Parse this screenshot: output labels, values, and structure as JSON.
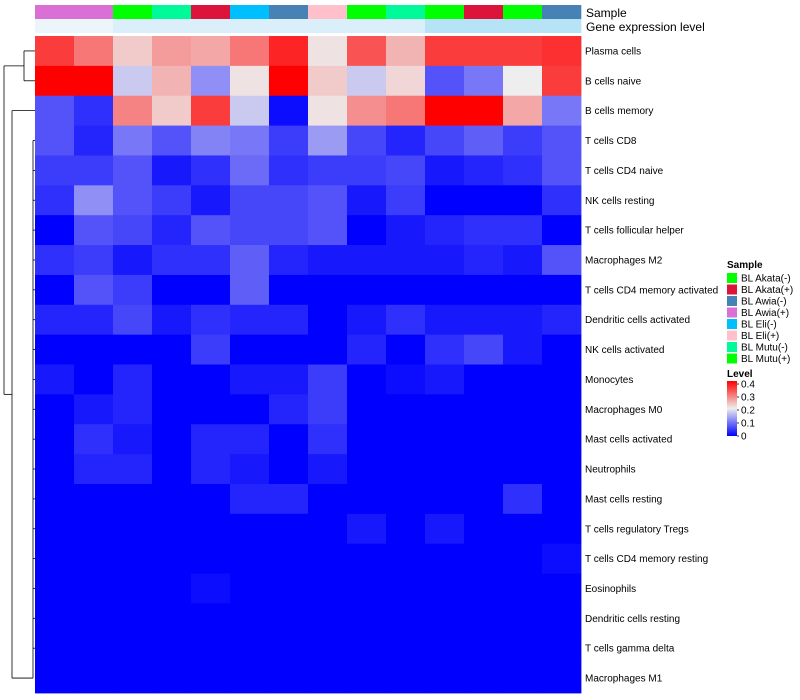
{
  "chart_data": {
    "type": "heatmap",
    "annotation_tracks": [
      "Sample",
      "Gene expression level"
    ],
    "rows": [
      "Plasma cells",
      "B cells naive",
      "B cells memory",
      "T cells CD8",
      "T cells CD4 naive",
      "NK cells resting",
      "T cells follicular helper",
      "Macrophages M2",
      "T cells CD4 memory activated",
      "Dendritic cells activated",
      "NK cells activated",
      "Monocytes",
      "Macrophages M0",
      "Mast cells activated",
      "Neutrophils",
      "Mast cells resting",
      "T cells regulatory  Tregs",
      "T cells CD4 memory resting",
      "Eosinophils",
      "Dendritic cells resting",
      "T cells gamma delta",
      "Macrophages M1"
    ],
    "column_samples": [
      "BL Awia(+)",
      "BL Awia(+)",
      "BL Akata(-)",
      "BL Mutu(-)",
      "BL Akata(+)",
      "BL Eli(-)",
      "BL Awia(-)",
      "BL Eli(+)",
      "BL Akata(-)",
      "BL Mutu(-)",
      "BL Akata(-)",
      "BL Akata(+)",
      "BL Akata(-)",
      "BL Awia(-)"
    ],
    "column_expression": [
      0.05,
      0.05,
      0.2,
      0.2,
      0.2,
      0.2,
      0.2,
      0.2,
      0.2,
      0.2,
      0.5,
      0.5,
      0.5,
      0.5
    ],
    "values": [
      [
        0.35,
        0.3,
        0.23,
        0.27,
        0.26,
        0.3,
        0.37,
        0.21,
        0.33,
        0.25,
        0.35,
        0.35,
        0.35,
        0.36
      ],
      [
        0.4,
        0.4,
        0.17,
        0.25,
        0.12,
        0.21,
        0.4,
        0.23,
        0.17,
        0.22,
        0.07,
        0.1,
        0.2,
        0.35
      ],
      [
        0.07,
        0.04,
        0.29,
        0.23,
        0.35,
        0.17,
        0.01,
        0.21,
        0.28,
        0.3,
        0.4,
        0.4,
        0.26,
        0.1
      ],
      [
        0.07,
        0.03,
        0.1,
        0.07,
        0.11,
        0.1,
        0.05,
        0.13,
        0.06,
        0.03,
        0.06,
        0.08,
        0.05,
        0.07
      ],
      [
        0.05,
        0.05,
        0.07,
        0.02,
        0.04,
        0.09,
        0.04,
        0.05,
        0.05,
        0.06,
        0.02,
        0.03,
        0.04,
        0.07
      ],
      [
        0.04,
        0.12,
        0.07,
        0.05,
        0.02,
        0.06,
        0.06,
        0.07,
        0.02,
        0.05,
        0.0,
        0.0,
        0.0,
        0.04
      ],
      [
        0.0,
        0.07,
        0.06,
        0.03,
        0.07,
        0.06,
        0.06,
        0.07,
        0.0,
        0.02,
        0.03,
        0.04,
        0.04,
        0.0
      ],
      [
        0.04,
        0.05,
        0.02,
        0.04,
        0.04,
        0.08,
        0.03,
        0.02,
        0.02,
        0.02,
        0.02,
        0.03,
        0.02,
        0.07
      ],
      [
        0.0,
        0.07,
        0.05,
        0.0,
        0.0,
        0.08,
        0.0,
        0.0,
        0.0,
        0.0,
        0.0,
        0.0,
        0.0,
        0.0
      ],
      [
        0.03,
        0.03,
        0.06,
        0.02,
        0.04,
        0.03,
        0.03,
        0.0,
        0.02,
        0.04,
        0.02,
        0.02,
        0.02,
        0.03
      ],
      [
        0.0,
        0.0,
        0.0,
        0.0,
        0.05,
        0.0,
        0.0,
        0.0,
        0.03,
        0.0,
        0.04,
        0.06,
        0.02,
        0.0
      ],
      [
        0.02,
        0.0,
        0.03,
        0.0,
        0.0,
        0.02,
        0.02,
        0.05,
        0.0,
        0.01,
        0.02,
        0.0,
        0.0,
        0.0
      ],
      [
        0.0,
        0.02,
        0.03,
        0.0,
        0.0,
        0.0,
        0.03,
        0.05,
        0.0,
        0.0,
        0.0,
        0.0,
        0.0,
        0.0
      ],
      [
        0.0,
        0.04,
        0.02,
        0.0,
        0.03,
        0.03,
        0.0,
        0.04,
        0.0,
        0.0,
        0.0,
        0.0,
        0.0,
        0.0
      ],
      [
        0.0,
        0.03,
        0.03,
        0.0,
        0.03,
        0.02,
        0.0,
        0.02,
        0.0,
        0.0,
        0.0,
        0.0,
        0.0,
        0.0
      ],
      [
        0.0,
        0.0,
        0.0,
        0.0,
        0.0,
        0.03,
        0.03,
        0.0,
        0.0,
        0.0,
        0.0,
        0.0,
        0.04,
        0.0
      ],
      [
        0.0,
        0.0,
        0.0,
        0.0,
        0.0,
        0.0,
        0.0,
        0.0,
        0.02,
        0.0,
        0.02,
        0.0,
        0.0,
        0.0
      ],
      [
        0.0,
        0.0,
        0.0,
        0.0,
        0.0,
        0.0,
        0.0,
        0.0,
        0.0,
        0.0,
        0.0,
        0.0,
        0.0,
        0.01
      ],
      [
        0.0,
        0.0,
        0.0,
        0.0,
        0.01,
        0.0,
        0.0,
        0.0,
        0.0,
        0.0,
        0.0,
        0.0,
        0.0,
        0.0
      ],
      [
        0.0,
        0.0,
        0.0,
        0.0,
        0.0,
        0.0,
        0.0,
        0.0,
        0.0,
        0.0,
        0.0,
        0.0,
        0.0,
        0.0
      ],
      [
        0.0,
        0.0,
        0.0,
        0.0,
        0.0,
        0.0,
        0.0,
        0.0,
        0.0,
        0.0,
        0.0,
        0.0,
        0.0,
        0.0
      ],
      [
        0.0,
        0.0,
        0.0,
        0.0,
        0.0,
        0.0,
        0.0,
        0.0,
        0.0,
        0.0,
        0.0,
        0.0,
        0.0,
        0.0
      ]
    ],
    "value_range": [
      0,
      0.4
    ],
    "colors": {
      "low": "#0000ff",
      "mid": "#eeeeee",
      "high": "#ff0000",
      "midpoint": 0.2
    },
    "legend": {
      "sample_title": "Sample",
      "samples": [
        {
          "label": "BL Akata(-)",
          "color": "#00ff00"
        },
        {
          "label": "BL Akata(+)",
          "color": "#dc143c"
        },
        {
          "label": "BL Awia(-)",
          "color": "#4682b4"
        },
        {
          "label": "BL Awia(+)",
          "color": "#da70d6"
        },
        {
          "label": "BL Eli(-)",
          "color": "#00bfff"
        },
        {
          "label": "BL Eli(+)",
          "color": "#ffc0cb"
        },
        {
          "label": "BL Mutu(-)",
          "color": "#00fa9a"
        },
        {
          "label": "BL Mutu(+)",
          "color": "#00ff00"
        }
      ],
      "level_title": "Level",
      "level_ticks": [
        "0.4",
        "0.3",
        "0.2",
        "0.1",
        "0"
      ]
    },
    "expression_colors": {
      "low": "#f2f7fb",
      "high": "#7ad0f0"
    }
  }
}
